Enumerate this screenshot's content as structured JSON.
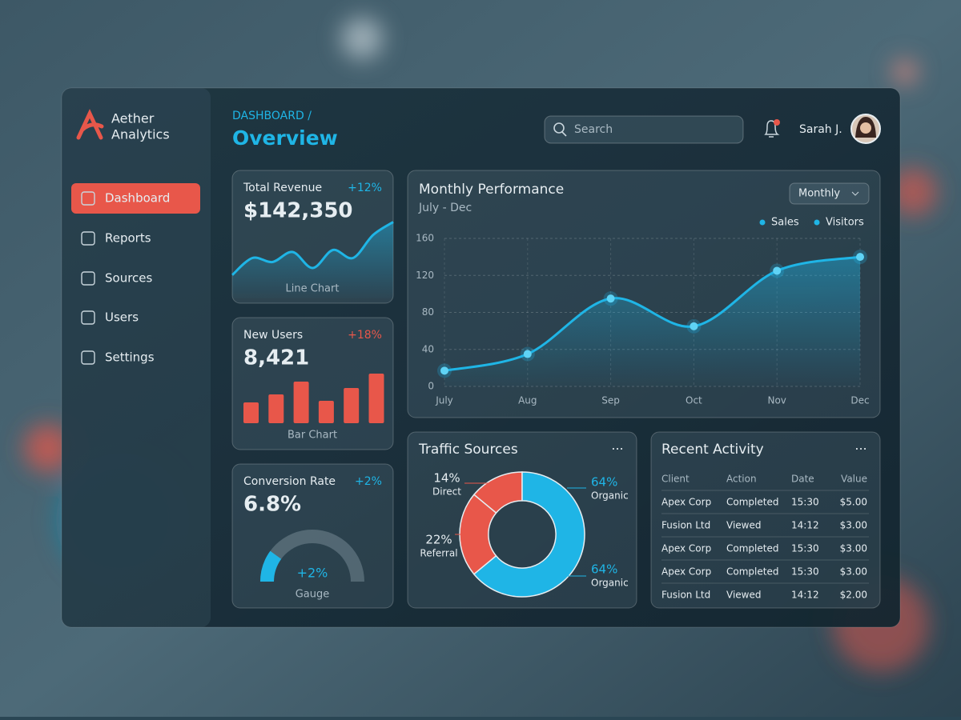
{
  "sidebar": {
    "brand": [
      "Aether",
      "Analytics"
    ],
    "nav": [
      "Dashboard",
      "Reports",
      "Sources",
      "Users",
      "Settings"
    ],
    "active": 0
  },
  "header": {
    "breadcrumb": "DASHBOARD /",
    "title": "Overview",
    "search_placeholder": "Search",
    "user": "Sarah J."
  },
  "chart_data": [
    {
      "type": "line",
      "title": "Total Revenue",
      "kpi": "$142,350",
      "change": "+12%",
      "caption": "Line Chart",
      "values": [
        5,
        22,
        18,
        28,
        12,
        30,
        22,
        45,
        58
      ],
      "ylim": [
        0,
        60
      ],
      "color": "#1fb5e6"
    },
    {
      "type": "bar",
      "title": "New Users",
      "kpi": "8,421",
      "change": "+18%",
      "caption": "Bar Chart",
      "values": [
        26,
        36,
        52,
        28,
        44,
        62
      ],
      "ylim": [
        0,
        70
      ],
      "color": "#e8574a"
    },
    {
      "type": "gauge",
      "title": "Conversion Rate",
      "kpi": "6.8%",
      "change": "+2%",
      "center_label": "+2%",
      "caption": "Gauge",
      "value": 20,
      "range": [
        0,
        100
      ],
      "color": "#1fb5e6"
    },
    {
      "type": "line",
      "title": "Monthly Performance",
      "subtitle": "July - Dec",
      "period": "Monthly",
      "legend": [
        {
          "name": "Sales",
          "color": "#1fb5e6"
        },
        {
          "name": "Visitors",
          "color": "#1fb5e6"
        }
      ],
      "categories": [
        "July",
        "Aug",
        "Sep",
        "Oct",
        "Nov",
        "Dec"
      ],
      "values": [
        17,
        35,
        95,
        65,
        125,
        140
      ],
      "ylim": [
        0,
        160
      ],
      "yticks": [
        0,
        40,
        80,
        120,
        160
      ],
      "grid": true,
      "color": "#1fb5e6"
    },
    {
      "type": "pie",
      "title": "Traffic Sources",
      "categories": [
        "Direct",
        "Referral",
        "Organic"
      ],
      "values": [
        14,
        22,
        64
      ],
      "value_labels": [
        "14%",
        "22%",
        "64%"
      ],
      "colors": [
        "#e8574a",
        "#e8574a",
        "#1fb5e6"
      ],
      "hole": 0.54
    }
  ],
  "recent_activity": {
    "title": "Recent Activity",
    "columns": [
      "Client",
      "Action",
      "Date",
      "Value"
    ],
    "rows": [
      [
        "Apex Corp",
        "Completed",
        "15:30",
        "$5.00"
      ],
      [
        "Fusion Ltd",
        "Viewed",
        "14:12",
        "$3.00"
      ],
      [
        "Apex Corp",
        "Completed",
        "15:30",
        "$3.00"
      ],
      [
        "Apex Corp",
        "Completed",
        "15:30",
        "$3.00"
      ],
      [
        "Fusion Ltd",
        "Viewed",
        "14:12",
        "$2.00"
      ]
    ]
  }
}
